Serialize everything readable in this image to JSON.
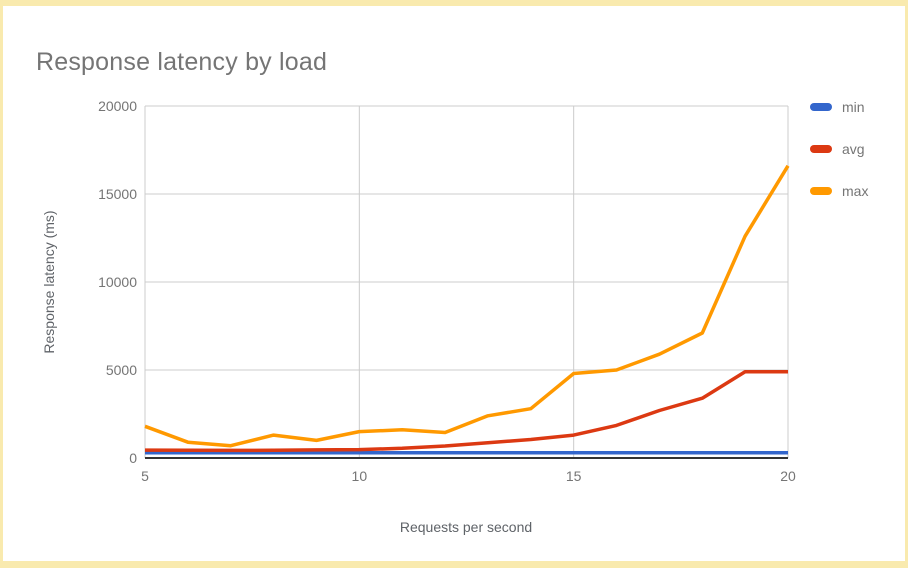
{
  "chart_data": {
    "type": "line",
    "title": "Response latency by load",
    "xlabel": "Requests per second",
    "ylabel": "Response latency (ms)",
    "x": [
      5,
      6,
      7,
      8,
      9,
      10,
      11,
      12,
      13,
      14,
      15,
      16,
      17,
      18,
      19,
      20
    ],
    "series": [
      {
        "name": "min",
        "color": "#3366CC",
        "values": [
          300,
          300,
          300,
          300,
          300,
          300,
          300,
          300,
          300,
          300,
          300,
          300,
          300,
          300,
          300,
          300
        ]
      },
      {
        "name": "avg",
        "color": "#DC3912",
        "values": [
          450,
          440,
          430,
          440,
          460,
          480,
          550,
          680,
          870,
          1050,
          1300,
          1850,
          2700,
          3400,
          4900,
          4900
        ]
      },
      {
        "name": "max",
        "color": "#FF9900",
        "values": [
          1800,
          900,
          700,
          1300,
          1000,
          1500,
          1600,
          1450,
          2400,
          2800,
          4800,
          5000,
          5900,
          7100,
          12600,
          16600
        ]
      }
    ],
    "xlim": [
      5,
      20
    ],
    "ylim": [
      0,
      20000
    ],
    "x_ticks": [
      5,
      10,
      15,
      20
    ],
    "y_ticks": [
      0,
      5000,
      10000,
      15000,
      20000
    ],
    "grid": true,
    "legend_position": "top-right"
  },
  "styles": {
    "border_color": "#F9EAAE",
    "grid_color": "#CCCCCC",
    "baseline_color": "#333333",
    "tick_text_color": "#757575",
    "axis_title_color": "#5F6368",
    "title_color": "#757575",
    "background_color": "#FFFFFF"
  }
}
